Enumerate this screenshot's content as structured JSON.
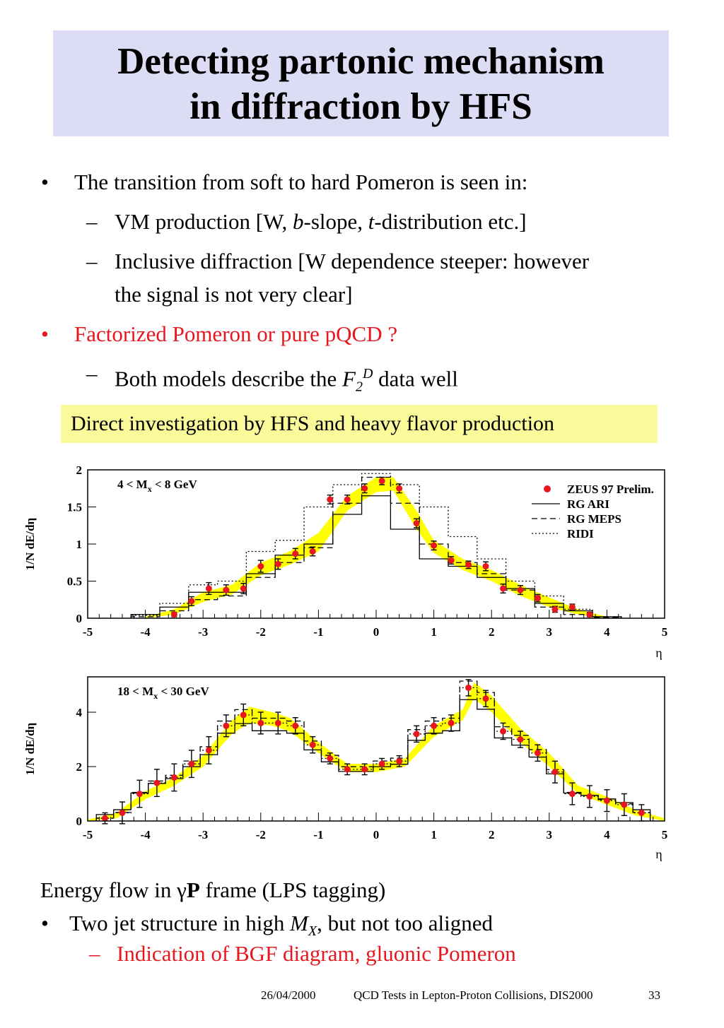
{
  "slide": {
    "title_line1": "Detecting partonic mechanism",
    "title_line2": "in diffraction by HFS",
    "bullets": [
      {
        "marker": "•",
        "text": "The transition from soft to hard Pomeron is seen in:"
      },
      {
        "marker": "–",
        "parts": [
          "VM production [W, ",
          "b",
          "-slope, ",
          "t",
          "-distribution etc.]"
        ]
      },
      {
        "marker": "–",
        "text": "Inclusive diffraction [W dependence steeper: however",
        "text2": "the signal is not very clear]"
      },
      {
        "marker": "•",
        "text": "Factorized Pomeron or pure pQCD ?",
        "color": "#e8171f"
      },
      {
        "marker": "–",
        "parts": [
          "Both models describe the ",
          "F",
          "2",
          "D",
          " data well"
        ]
      }
    ],
    "callout": "Direct investigation by HFS and heavy flavor production",
    "bottom": {
      "line1_parts": [
        "Energy flow in ",
        "γ",
        "P",
        " frame (LPS tagging)"
      ],
      "bullet_marker": "•",
      "line2_parts": [
        "Two jet structure in high ",
        "M",
        "X",
        ", but not too aligned"
      ],
      "sub_marker": "–",
      "line3": "Indication of BGF diagram, gluonic Pomeron"
    },
    "footer": {
      "date": "26/04/2000",
      "center": "QCD Tests in Lepton-Proton Collisions, DIS2000",
      "page": "33"
    },
    "colors": {
      "title_bg": "#dcdcf5",
      "callout_bg": "#fafa9b",
      "red": "#e8171f",
      "band": "#ffff00"
    }
  },
  "chart_data": [
    {
      "type": "line",
      "label": "4 < M",
      "label_sub": "x",
      "label_tail": " < 8 GeV",
      "ylabel": "1/N dE/dη",
      "xlabel": "η",
      "xlim": [
        -5,
        5
      ],
      "ylim": [
        0,
        2
      ],
      "xticks": [
        "-5",
        "-4",
        "-3",
        "-2",
        "-1",
        "0",
        "1",
        "2",
        "3",
        "4",
        "5"
      ],
      "yticks": [
        "0",
        "0.5",
        "1",
        "1.5",
        "2"
      ],
      "ytick_values": [
        0,
        0.5,
        1,
        1.5,
        2
      ],
      "legend": [
        "ZEUS 97 Prelim.",
        "RG ARI",
        "RG MEPS",
        "RIDI"
      ],
      "legend_position": "top-right",
      "data_x": [
        -3.5,
        -3.2,
        -2.9,
        -2.6,
        -2.3,
        -2.0,
        -1.7,
        -1.4,
        -1.1,
        -0.8,
        -0.5,
        -0.2,
        0.1,
        0.4,
        0.7,
        1.0,
        1.3,
        1.6,
        1.9,
        2.2,
        2.5,
        2.8,
        3.1,
        3.4,
        3.7
      ],
      "data_y": [
        0.05,
        0.23,
        0.4,
        0.38,
        0.4,
        0.7,
        0.73,
        0.87,
        0.9,
        1.6,
        1.6,
        1.75,
        1.85,
        1.75,
        1.28,
        0.98,
        0.78,
        0.72,
        0.7,
        0.4,
        0.38,
        0.27,
        0.12,
        0.15,
        0.05
      ],
      "data_err": [
        0.03,
        0.06,
        0.08,
        0.07,
        0.07,
        0.08,
        0.07,
        0.07,
        0.06,
        0.06,
        0.06,
        0.06,
        0.05,
        0.06,
        0.06,
        0.06,
        0.05,
        0.05,
        0.06,
        0.06,
        0.06,
        0.05,
        0.04,
        0.04,
        0.03
      ],
      "band_x": [
        -4.0,
        -3.5,
        -3.0,
        -2.5,
        -2.0,
        -1.5,
        -1.0,
        -0.5,
        0.0,
        0.3,
        0.7,
        1.0,
        1.5,
        2.0,
        2.5,
        3.0,
        3.5,
        4.0
      ],
      "band_lo": [
        0.0,
        0.05,
        0.22,
        0.32,
        0.58,
        0.72,
        0.9,
        1.45,
        1.7,
        1.72,
        1.2,
        0.88,
        0.65,
        0.5,
        0.3,
        0.15,
        0.05,
        0.0
      ],
      "band_hi": [
        0.02,
        0.12,
        0.35,
        0.45,
        0.75,
        0.9,
        1.15,
        1.65,
        1.9,
        1.9,
        1.45,
        1.05,
        0.8,
        0.65,
        0.45,
        0.28,
        0.12,
        0.02
      ],
      "edges": [
        -4.25,
        -3.75,
        -3.25,
        -2.75,
        -2.25,
        -1.75,
        -1.25,
        -0.75,
        -0.25,
        0.25,
        0.75,
        1.25,
        1.75,
        2.25,
        2.75,
        3.25,
        3.75,
        4.25
      ],
      "ari": [
        0.05,
        0.15,
        0.35,
        0.35,
        0.6,
        0.85,
        1.0,
        1.4,
        1.65,
        1.2,
        0.8,
        0.7,
        0.55,
        0.4,
        0.2,
        0.1,
        0.02
      ],
      "meps": [
        0.02,
        0.1,
        0.25,
        0.3,
        0.55,
        0.75,
        0.95,
        1.55,
        1.9,
        1.55,
        1.0,
        0.75,
        0.6,
        0.38,
        0.15,
        0.05,
        0.01
      ],
      "ridi": [
        0.04,
        0.2,
        0.45,
        0.5,
        0.9,
        1.05,
        1.5,
        1.8,
        1.95,
        1.8,
        1.5,
        1.1,
        0.8,
        0.5,
        0.3,
        0.12,
        0.02
      ]
    },
    {
      "type": "line",
      "label": "18 < M",
      "label_sub": "x",
      "label_tail": " < 30 GeV",
      "ylabel": "1/N dE/dη",
      "xlabel": "η",
      "xlim": [
        -5,
        5
      ],
      "ylim": [
        0,
        5.3
      ],
      "xticks": [
        "-5",
        "-4",
        "-3",
        "-2",
        "-1",
        "0",
        "1",
        "2",
        "3",
        "4",
        "5"
      ],
      "yticks": [
        "0",
        "2",
        "4"
      ],
      "ytick_values": [
        0,
        2,
        4
      ],
      "data_x": [
        -4.7,
        -4.4,
        -4.1,
        -3.8,
        -3.5,
        -3.2,
        -2.9,
        -2.6,
        -2.3,
        -2.0,
        -1.7,
        -1.4,
        -1.1,
        -0.8,
        -0.5,
        -0.2,
        0.1,
        0.4,
        0.7,
        1.0,
        1.3,
        1.6,
        1.9,
        2.2,
        2.5,
        2.8,
        3.1,
        3.4,
        3.7,
        4.0,
        4.3,
        4.6
      ],
      "data_y": [
        0.1,
        0.3,
        1.0,
        1.4,
        1.6,
        2.1,
        2.6,
        3.5,
        3.9,
        3.6,
        3.6,
        3.5,
        2.8,
        2.3,
        1.9,
        1.9,
        2.1,
        2.2,
        3.2,
        3.5,
        3.6,
        4.9,
        4.5,
        3.3,
        3.0,
        2.5,
        1.8,
        1.0,
        0.9,
        0.75,
        0.6,
        0.3
      ],
      "data_err": [
        0.2,
        0.4,
        0.5,
        0.5,
        0.5,
        0.5,
        0.5,
        0.4,
        0.4,
        0.4,
        0.4,
        0.3,
        0.3,
        0.2,
        0.2,
        0.2,
        0.2,
        0.2,
        0.3,
        0.3,
        0.3,
        0.3,
        0.3,
        0.3,
        0.3,
        0.3,
        0.4,
        0.4,
        0.4,
        0.4,
        0.4,
        0.3
      ],
      "band_x": [
        -5.0,
        -4.5,
        -4.0,
        -3.5,
        -3.0,
        -2.5,
        -2.2,
        -1.8,
        -1.5,
        -1.0,
        -0.5,
        0.0,
        0.5,
        1.0,
        1.5,
        1.7,
        2.0,
        2.5,
        3.0,
        3.5,
        4.0,
        4.5,
        5.0
      ],
      "band_lo": [
        0.0,
        0.1,
        0.8,
        1.3,
        2.0,
        3.2,
        3.6,
        3.5,
        3.3,
        2.5,
        1.8,
        1.8,
        2.0,
        3.1,
        3.7,
        4.5,
        4.0,
        2.9,
        2.0,
        1.0,
        0.6,
        0.2,
        0.0
      ],
      "band_hi": [
        0.05,
        0.3,
        1.1,
        1.6,
        2.4,
        3.7,
        4.2,
        4.0,
        3.8,
        2.9,
        2.1,
        2.1,
        2.3,
        3.5,
        4.1,
        5.1,
        4.6,
        3.4,
        2.5,
        1.3,
        0.9,
        0.4,
        0.1
      ]
    }
  ]
}
